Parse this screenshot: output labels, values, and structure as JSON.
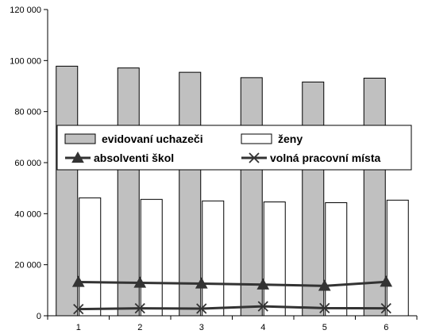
{
  "chart_data": {
    "type": "bar",
    "categories": [
      "1",
      "2",
      "3",
      "4",
      "5",
      "6"
    ],
    "ylim": [
      0,
      120000
    ],
    "yticks": [
      0,
      20000,
      40000,
      60000,
      80000,
      100000,
      120000
    ],
    "ytick_labels": [
      "0",
      "20 000",
      "40 000",
      "60 000",
      "80 000",
      "100 000",
      "120 000"
    ],
    "xlabel": "",
    "ylabel": "",
    "title": "",
    "grid": false,
    "legend_position": "middle",
    "series": [
      {
        "name": "evidovaní uchazeči",
        "kind": "bar",
        "color": "#c0c0c0",
        "values": [
          97800,
          97100,
          95400,
          93300,
          91600,
          93100
        ]
      },
      {
        "name": "ženy",
        "kind": "bar",
        "color": "#ffffff",
        "values": [
          46200,
          45600,
          45000,
          44600,
          44300,
          45300
        ]
      },
      {
        "name": "absolventi škol",
        "kind": "line",
        "marker": "triangle",
        "color": "#333333",
        "values": [
          13200,
          12900,
          12600,
          12200,
          11700,
          13300
        ]
      },
      {
        "name": "volná pracovní místa",
        "kind": "line",
        "marker": "x",
        "color": "#333333",
        "values": [
          2600,
          2900,
          2800,
          3700,
          3000,
          2900
        ]
      }
    ]
  }
}
